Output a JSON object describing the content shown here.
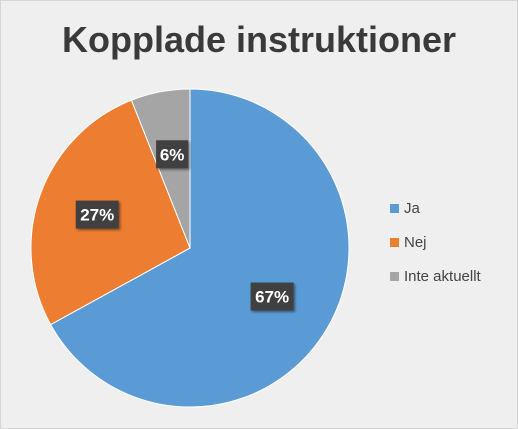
{
  "chart_data": {
    "type": "pie",
    "title": "Kopplade instruktioner",
    "categories": [
      "Ja",
      "Nej",
      "Inte aktuellt"
    ],
    "values": [
      67,
      27,
      6
    ],
    "data_labels": [
      "67%",
      "27%",
      "6%"
    ],
    "colors": [
      "#5b9bd5",
      "#ed7d31",
      "#a5a5a5"
    ],
    "legend_position": "right",
    "start_angle": "top, clockwise"
  }
}
